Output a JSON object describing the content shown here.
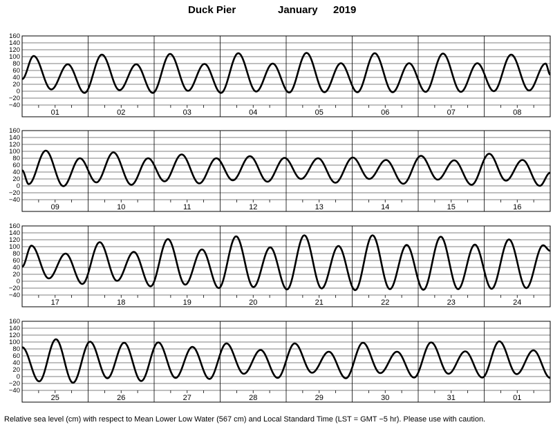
{
  "chart_data": {
    "type": "line",
    "title": {
      "station": "Duck Pier",
      "month": "January",
      "year": "2019"
    },
    "ylabel": "",
    "xlabel": "",
    "ylim": [
      -40,
      160
    ],
    "yticks": [
      -40,
      -20,
      0,
      20,
      40,
      60,
      80,
      100,
      120,
      140,
      160
    ],
    "grid": true,
    "line_color": "#000000",
    "rows": [
      {
        "day_labels": [
          "01",
          "02",
          "03",
          "04",
          "05",
          "06",
          "07",
          "08"
        ],
        "points": [
          {
            "t": 0.0,
            "h": 35
          },
          {
            "t": 4.2,
            "h": 102
          },
          {
            "t": 10.6,
            "h": 5
          },
          {
            "t": 16.6,
            "h": 78
          },
          {
            "t": 22.7,
            "h": -5
          },
          {
            "t": 29.0,
            "h": 106
          },
          {
            "t": 35.4,
            "h": 3
          },
          {
            "t": 41.5,
            "h": 78
          },
          {
            "t": 47.5,
            "h": -5
          },
          {
            "t": 53.8,
            "h": 108
          },
          {
            "t": 60.3,
            "h": 1
          },
          {
            "t": 66.3,
            "h": 79
          },
          {
            "t": 72.3,
            "h": -5
          },
          {
            "t": 78.6,
            "h": 110
          },
          {
            "t": 85.1,
            "h": -1
          },
          {
            "t": 91.1,
            "h": 80
          },
          {
            "t": 97.1,
            "h": -4
          },
          {
            "t": 103.4,
            "h": 111
          },
          {
            "t": 109.9,
            "h": -3
          },
          {
            "t": 115.9,
            "h": 81
          },
          {
            "t": 121.9,
            "h": -3
          },
          {
            "t": 128.2,
            "h": 110
          },
          {
            "t": 134.7,
            "h": -3
          },
          {
            "t": 140.7,
            "h": 81
          },
          {
            "t": 146.7,
            "h": -2
          },
          {
            "t": 153.0,
            "h": 109
          },
          {
            "t": 159.5,
            "h": -2
          },
          {
            "t": 165.5,
            "h": 81
          },
          {
            "t": 171.5,
            "h": 0
          },
          {
            "t": 177.8,
            "h": 106
          },
          {
            "t": 184.3,
            "h": 2
          },
          {
            "t": 190.3,
            "h": 80
          },
          {
            "t": 192.0,
            "h": 48
          }
        ]
      },
      {
        "day_labels": [
          "09",
          "10",
          "11",
          "12",
          "13",
          "14",
          "15",
          "16"
        ],
        "points": [
          {
            "t": 0.0,
            "h": 45
          },
          {
            "t": 2.4,
            "h": 5
          },
          {
            "t": 8.6,
            "h": 102
          },
          {
            "t": 15.0,
            "h": -1
          },
          {
            "t": 21.0,
            "h": 80
          },
          {
            "t": 27.0,
            "h": 10
          },
          {
            "t": 33.2,
            "h": 97
          },
          {
            "t": 39.7,
            "h": 3
          },
          {
            "t": 45.8,
            "h": 80
          },
          {
            "t": 51.8,
            "h": 13
          },
          {
            "t": 58.0,
            "h": 91
          },
          {
            "t": 64.4,
            "h": 7
          },
          {
            "t": 70.6,
            "h": 80
          },
          {
            "t": 76.6,
            "h": 16
          },
          {
            "t": 82.8,
            "h": 86
          },
          {
            "t": 89.2,
            "h": 12
          },
          {
            "t": 95.4,
            "h": 81
          },
          {
            "t": 101.4,
            "h": 20
          },
          {
            "t": 107.6,
            "h": 80
          },
          {
            "t": 113.9,
            "h": 9
          },
          {
            "t": 120.2,
            "h": 82
          },
          {
            "t": 126.2,
            "h": 20
          },
          {
            "t": 132.3,
            "h": 75
          },
          {
            "t": 138.6,
            "h": 6
          },
          {
            "t": 145.0,
            "h": 87
          },
          {
            "t": 151.1,
            "h": 18
          },
          {
            "t": 157.1,
            "h": 74
          },
          {
            "t": 163.4,
            "h": 3
          },
          {
            "t": 169.8,
            "h": 93
          },
          {
            "t": 175.9,
            "h": 15
          },
          {
            "t": 181.9,
            "h": 75
          },
          {
            "t": 188.2,
            "h": 0
          },
          {
            "t": 192.0,
            "h": 38
          }
        ]
      },
      {
        "day_labels": [
          "17",
          "18",
          "19",
          "20",
          "21",
          "22",
          "23",
          "24"
        ],
        "points": [
          {
            "t": 0.0,
            "h": 42
          },
          {
            "t": 3.4,
            "h": 103
          },
          {
            "t": 9.7,
            "h": 8
          },
          {
            "t": 15.8,
            "h": 80
          },
          {
            "t": 21.9,
            "h": -8
          },
          {
            "t": 28.2,
            "h": 113
          },
          {
            "t": 34.5,
            "h": 1
          },
          {
            "t": 40.6,
            "h": 85
          },
          {
            "t": 46.7,
            "h": -15
          },
          {
            "t": 53.0,
            "h": 122
          },
          {
            "t": 59.3,
            "h": -10
          },
          {
            "t": 65.4,
            "h": 92
          },
          {
            "t": 71.5,
            "h": -20
          },
          {
            "t": 77.8,
            "h": 130
          },
          {
            "t": 84.1,
            "h": -17
          },
          {
            "t": 90.2,
            "h": 98
          },
          {
            "t": 96.3,
            "h": -24
          },
          {
            "t": 102.6,
            "h": 133
          },
          {
            "t": 108.9,
            "h": -21
          },
          {
            "t": 115.0,
            "h": 102
          },
          {
            "t": 121.1,
            "h": -26
          },
          {
            "t": 127.4,
            "h": 133
          },
          {
            "t": 133.7,
            "h": -23
          },
          {
            "t": 139.8,
            "h": 105
          },
          {
            "t": 145.9,
            "h": -25
          },
          {
            "t": 152.2,
            "h": 129
          },
          {
            "t": 158.5,
            "h": -23
          },
          {
            "t": 164.6,
            "h": 106
          },
          {
            "t": 170.7,
            "h": -22
          },
          {
            "t": 177.0,
            "h": 121
          },
          {
            "t": 183.3,
            "h": -20
          },
          {
            "t": 189.4,
            "h": 104
          },
          {
            "t": 192.0,
            "h": 88
          }
        ]
      },
      {
        "day_labels": [
          "25",
          "26",
          "27",
          "28",
          "29",
          "30",
          "31",
          "01"
        ],
        "points": [
          {
            "t": 0.0,
            "h": 85
          },
          {
            "t": 6.2,
            "h": -14
          },
          {
            "t": 12.3,
            "h": 108
          },
          {
            "t": 18.5,
            "h": -18
          },
          {
            "t": 24.7,
            "h": 101
          },
          {
            "t": 31.0,
            "h": -5
          },
          {
            "t": 37.1,
            "h": 98
          },
          {
            "t": 43.3,
            "h": -13
          },
          {
            "t": 49.5,
            "h": 99
          },
          {
            "t": 55.8,
            "h": -4
          },
          {
            "t": 61.9,
            "h": 86
          },
          {
            "t": 68.1,
            "h": -7
          },
          {
            "t": 74.3,
            "h": 96
          },
          {
            "t": 80.6,
            "h": 8
          },
          {
            "t": 86.7,
            "h": 77
          },
          {
            "t": 92.9,
            "h": -4
          },
          {
            "t": 99.1,
            "h": 96
          },
          {
            "t": 105.4,
            "h": 11
          },
          {
            "t": 111.5,
            "h": 72
          },
          {
            "t": 117.7,
            "h": -5
          },
          {
            "t": 123.9,
            "h": 98
          },
          {
            "t": 130.2,
            "h": 10
          },
          {
            "t": 136.3,
            "h": 72
          },
          {
            "t": 142.5,
            "h": -3
          },
          {
            "t": 148.7,
            "h": 99
          },
          {
            "t": 155.0,
            "h": 8
          },
          {
            "t": 161.1,
            "h": 73
          },
          {
            "t": 167.3,
            "h": -3
          },
          {
            "t": 173.5,
            "h": 102
          },
          {
            "t": 179.8,
            "h": 7
          },
          {
            "t": 185.9,
            "h": 76
          },
          {
            "t": 192.0,
            "h": -4
          }
        ]
      }
    ]
  },
  "footnote": "Relative sea level (cm) with respect to Mean Lower Low Water (567 cm) and Local Standard Time (LST = GMT −5 hr). Please use with caution."
}
